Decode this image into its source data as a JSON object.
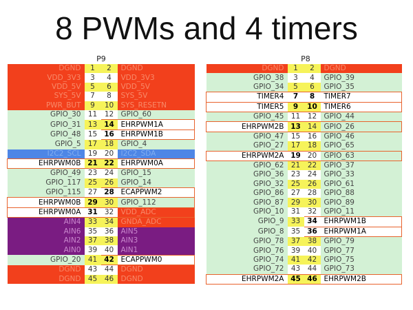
{
  "title": "8 PWMs and 4 timers",
  "headers": {
    "left": "P9",
    "right": "P8"
  },
  "colors": {
    "red": "#f2401c",
    "green": "#d3f1d5",
    "purple": "#7a1c82",
    "blue": "#4e86e6",
    "yellow": "#f6f35a",
    "outline": "#e8622c"
  },
  "p9": [
    {
      "left": "DGND",
      "ln": "1",
      "rn": "2",
      "right": "DGND",
      "style": "red",
      "ly": true,
      "ry": true
    },
    {
      "left": "VDD_3V3",
      "ln": "3",
      "rn": "4",
      "right": "VDD_3V3",
      "style": "red",
      "ly": false,
      "ry": false
    },
    {
      "left": "VDD_5V",
      "ln": "5",
      "rn": "6",
      "right": "VDD_5V",
      "style": "red",
      "ly": true,
      "ry": true
    },
    {
      "left": "SYS_5V",
      "ln": "7",
      "rn": "8",
      "right": "SYS_5V",
      "style": "red",
      "ly": false,
      "ry": false
    },
    {
      "left": "PWR_BUT",
      "ln": "9",
      "rn": "10",
      "right": "SYS_RESETN",
      "style": "red",
      "ly": true,
      "ry": true
    },
    {
      "left": "GPIO_30",
      "ln": "11",
      "rn": "12",
      "right": "GPIO_60",
      "style": "green",
      "ly": false,
      "ry": false
    },
    {
      "left": "GPIO_31",
      "ln": "13",
      "rn": "14",
      "right": "EHRPWM1A",
      "style": "green",
      "rstyle": "white",
      "ly": true,
      "ry": true
    },
    {
      "left": "GPIO_48",
      "ln": "15",
      "rn": "16",
      "right": "EHRPWM1B",
      "style": "green",
      "rstyle": "white",
      "ly": false,
      "ry": false
    },
    {
      "left": "GPIO_5",
      "ln": "17",
      "rn": "18",
      "right": "GPIO_4",
      "style": "green",
      "ly": true,
      "ry": true
    },
    {
      "left": "I2C2_SCL",
      "ln": "19",
      "rn": "20",
      "right": "I2C2_SDA",
      "style": "blue",
      "ly": false,
      "ry": false
    },
    {
      "left": "EHRPWM0B",
      "ln": "21",
      "rn": "22",
      "right": "EHRPWM0A",
      "style": "white",
      "ly": true,
      "ry": true
    },
    {
      "left": "GPIO_49",
      "ln": "23",
      "rn": "24",
      "right": "GPIO_15",
      "style": "green",
      "ly": false,
      "ry": false
    },
    {
      "left": "GPIO_117",
      "ln": "25",
      "rn": "26",
      "right": "GPIO_14",
      "style": "green",
      "ly": true,
      "ry": true
    },
    {
      "left": "GPIO_115",
      "ln": "27",
      "rn": "28",
      "right": "ECAPPWM2",
      "style": "green",
      "rstyle": "white",
      "ly": false,
      "ry": false
    },
    {
      "left": "EHRPWM0B",
      "ln": "29",
      "rn": "30",
      "right": "GPIO_112",
      "style": "white",
      "rstyle": "green",
      "ly": true,
      "ry": true
    },
    {
      "left": "EHRPWM0A",
      "ln": "31",
      "rn": "32",
      "right": "VDD_ADC",
      "style": "white",
      "rstyle": "red",
      "ly": false,
      "ry": false
    },
    {
      "left": "AIN4",
      "ln": "33",
      "rn": "34",
      "right": "GNDA_ADC",
      "style": "purple",
      "rstyle": "red",
      "ly": true,
      "ry": true
    },
    {
      "left": "AIN6",
      "ln": "35",
      "rn": "36",
      "right": "AIN5",
      "style": "purple",
      "ly": false,
      "ry": false
    },
    {
      "left": "AIN2",
      "ln": "37",
      "rn": "38",
      "right": "AIN3",
      "style": "purple",
      "ly": true,
      "ry": true
    },
    {
      "left": "AIN0",
      "ln": "39",
      "rn": "40",
      "right": "AIN1",
      "style": "purple",
      "ly": false,
      "ry": false
    },
    {
      "left": "GPIO_20",
      "ln": "41",
      "rn": "42",
      "right": "ECAPPWM0",
      "style": "green",
      "rstyle": "white",
      "ly": true,
      "ry": true
    },
    {
      "left": "DGND",
      "ln": "43",
      "rn": "44",
      "right": "DGND",
      "style": "red",
      "ly": false,
      "ry": false
    },
    {
      "left": "DGND",
      "ln": "45",
      "rn": "46",
      "right": "DGND",
      "style": "red",
      "ly": true,
      "ry": true
    }
  ],
  "p8": [
    {
      "left": "DGND",
      "ln": "1",
      "rn": "2",
      "right": "DGND",
      "style": "red",
      "ly": true,
      "ry": true
    },
    {
      "left": "GPIO_38",
      "ln": "3",
      "rn": "4",
      "right": "GPIO_39",
      "style": "green",
      "ly": false,
      "ry": false
    },
    {
      "left": "GPIO_34",
      "ln": "5",
      "rn": "6",
      "right": "GPIO_35",
      "style": "green",
      "ly": true,
      "ry": true
    },
    {
      "left": "TIMER4",
      "ln": "7",
      "rn": "8",
      "right": "TIMER7",
      "style": "white",
      "ly": false,
      "ry": false
    },
    {
      "left": "TIMER5",
      "ln": "9",
      "rn": "10",
      "right": "TIMER6",
      "style": "white",
      "ly": true,
      "ry": true
    },
    {
      "left": "GPIO_45",
      "ln": "11",
      "rn": "12",
      "right": "GPIO_44",
      "style": "green",
      "ly": false,
      "ry": false
    },
    {
      "left": "EHRPWM2B",
      "ln": "13",
      "rn": "14",
      "right": "GPIO_26",
      "style": "white",
      "rstyle": "green",
      "ly": true,
      "ry": true
    },
    {
      "left": "GPIO_47",
      "ln": "15",
      "rn": "16",
      "right": "GPIO_46",
      "style": "green",
      "ly": false,
      "ry": false
    },
    {
      "left": "GPIO_27",
      "ln": "17",
      "rn": "18",
      "right": "GPIO_65",
      "style": "green",
      "ly": true,
      "ry": true
    },
    {
      "left": "EHRPWM2A",
      "ln": "19",
      "rn": "20",
      "right": "GPIO_63",
      "style": "white",
      "rstyle": "green",
      "ly": false,
      "ry": false
    },
    {
      "left": "GPIO_62",
      "ln": "21",
      "rn": "22",
      "right": "GPIO_37",
      "style": "green",
      "ly": true,
      "ry": true
    },
    {
      "left": "GPIO_36",
      "ln": "23",
      "rn": "24",
      "right": "GPIO_33",
      "style": "green",
      "ly": false,
      "ry": false
    },
    {
      "left": "GPIO_32",
      "ln": "25",
      "rn": "26",
      "right": "GPIO_61",
      "style": "green",
      "ly": true,
      "ry": true
    },
    {
      "left": "GPIO_86",
      "ln": "27",
      "rn": "28",
      "right": "GPIO_88",
      "style": "green",
      "ly": false,
      "ry": false
    },
    {
      "left": "GPIO_87",
      "ln": "29",
      "rn": "30",
      "right": "GPIO_89",
      "style": "green",
      "ly": true,
      "ry": true
    },
    {
      "left": "GPIO_10",
      "ln": "31",
      "rn": "32",
      "right": "GPIO_11",
      "style": "green",
      "ly": false,
      "ry": false
    },
    {
      "left": "GPIO_9",
      "ln": "33",
      "rn": "34",
      "right": "EHRPWM1B",
      "style": "green",
      "rstyle": "white",
      "ly": true,
      "ry": false
    },
    {
      "left": "GPIO_8",
      "ln": "35",
      "rn": "36",
      "right": "EHRPWM1A",
      "style": "green",
      "rstyle": "white",
      "ly": false,
      "ry": false
    },
    {
      "left": "GPIO_78",
      "ln": "37",
      "rn": "38",
      "right": "GPIO_79",
      "style": "green",
      "ly": true,
      "ry": true
    },
    {
      "left": "GPIO_76",
      "ln": "39",
      "rn": "40",
      "right": "GPIO_77",
      "style": "green",
      "ly": false,
      "ry": false
    },
    {
      "left": "GPIO_74",
      "ln": "41",
      "rn": "42",
      "right": "GPIO_75",
      "style": "green",
      "ly": true,
      "ry": true
    },
    {
      "left": "GPIO_72",
      "ln": "43",
      "rn": "44",
      "right": "GPIO_73",
      "style": "green",
      "ly": false,
      "ry": false
    },
    {
      "left": "EHRPWM2A",
      "ln": "45",
      "rn": "46",
      "right": "EHRPWM2B",
      "style": "white",
      "ly": true,
      "ry": true
    }
  ]
}
